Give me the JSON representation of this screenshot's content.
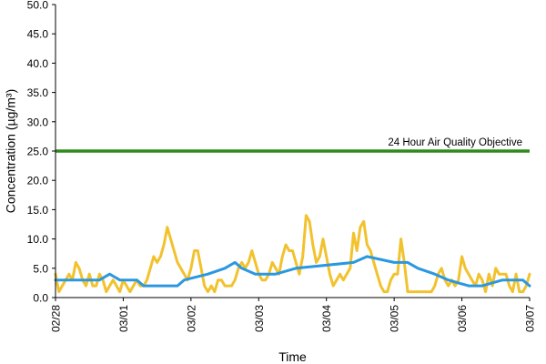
{
  "chart_data": {
    "type": "line",
    "title": "",
    "xlabel": "Time",
    "ylabel": "Concentration (µg/m³)",
    "ylim": [
      0,
      50
    ],
    "xlim": [
      "02/28",
      "03/07"
    ],
    "y_ticks": [
      "0.0",
      "5.0",
      "10.0",
      "15.0",
      "20.0",
      "25.0",
      "30.0",
      "35.0",
      "40.0",
      "45.0",
      "50.0"
    ],
    "x_ticks": [
      "02/28",
      "03/01",
      "03/02",
      "03/03",
      "03/04",
      "03/05",
      "03/06",
      "03/07"
    ],
    "grid": false,
    "legend": "none",
    "reference_line": {
      "value": 25,
      "label": "24 Hour Air Quality Objective",
      "color": "#2e8b1e"
    },
    "series": [
      {
        "color": "#f2c22e",
        "x": [
          0,
          0.05,
          0.1,
          0.15,
          0.2,
          0.25,
          0.3,
          0.35,
          0.4,
          0.45,
          0.5,
          0.55,
          0.6,
          0.65,
          0.7,
          0.75,
          0.8,
          0.85,
          0.9,
          0.95,
          1.0,
          1.05,
          1.1,
          1.15,
          1.2,
          1.25,
          1.3,
          1.35,
          1.4,
          1.45,
          1.5,
          1.55,
          1.6,
          1.65,
          1.7,
          1.75,
          1.8,
          1.85,
          1.9,
          1.95,
          2.0,
          2.05,
          2.1,
          2.15,
          2.2,
          2.25,
          2.3,
          2.35,
          2.4,
          2.45,
          2.5,
          2.55,
          2.6,
          2.65,
          2.7,
          2.75,
          2.8,
          2.85,
          2.9,
          2.95,
          3.0,
          3.05,
          3.1,
          3.15,
          3.2,
          3.25,
          3.3,
          3.35,
          3.4,
          3.45,
          3.5,
          3.55,
          3.6,
          3.65,
          3.7,
          3.75,
          3.8,
          3.85,
          3.9,
          3.95,
          4.0,
          4.05,
          4.1,
          4.15,
          4.2,
          4.25,
          4.3,
          4.35,
          4.4,
          4.45,
          4.5,
          4.55,
          4.6,
          4.65,
          4.7,
          4.75,
          4.8,
          4.85,
          4.9,
          4.95,
          5.0,
          5.05,
          5.1,
          5.15,
          5.2,
          5.25,
          5.3,
          5.35,
          5.4,
          5.45,
          5.5,
          5.55,
          5.6,
          5.65,
          5.7,
          5.75,
          5.8,
          5.85,
          5.9,
          5.95,
          6.0,
          6.05,
          6.1,
          6.15,
          6.2,
          6.25,
          6.3,
          6.35,
          6.4,
          6.45,
          6.5,
          6.55,
          6.6,
          6.65,
          6.7,
          6.75,
          6.8,
          6.85,
          6.9,
          6.95,
          7.0
        ],
        "values": [
          4,
          1,
          2,
          3,
          4,
          3,
          6,
          5,
          3,
          2,
          4,
          2,
          2,
          4,
          3,
          1,
          2,
          3,
          2,
          1,
          3,
          2,
          1,
          2,
          3,
          2,
          2,
          3,
          5,
          7,
          6,
          7,
          9,
          12,
          10,
          8,
          6,
          5,
          4,
          3,
          5,
          8,
          8,
          5,
          2,
          1,
          2,
          1,
          3,
          3,
          2,
          2,
          2,
          3,
          5,
          6,
          5,
          6,
          8,
          6,
          4,
          3,
          3,
          4,
          6,
          5,
          4,
          7,
          9,
          8,
          8,
          6,
          4,
          7,
          14,
          13,
          9,
          6,
          7,
          10,
          7,
          4,
          2,
          3,
          4,
          3,
          4,
          5,
          11,
          8,
          12,
          13,
          9,
          8,
          6,
          4,
          2,
          1,
          1,
          3,
          4,
          4,
          10,
          6,
          1,
          1,
          1,
          1,
          1,
          1,
          1,
          1,
          2,
          4,
          5,
          3,
          2,
          3,
          2,
          3,
          7,
          5,
          4,
          3,
          2,
          4,
          3,
          1,
          4,
          2,
          5,
          4,
          4,
          4,
          2,
          1,
          4,
          1,
          1,
          2,
          4
        ]
      },
      {
        "color": "#2a98e0",
        "x": [
          0,
          0.3,
          0.65,
          0.8,
          0.95,
          1.0,
          1.2,
          1.3,
          1.8,
          1.9,
          2.25,
          2.5,
          2.65,
          2.75,
          2.95,
          3.25,
          3.55,
          4.4,
          4.6,
          5.0,
          5.2,
          5.35,
          5.6,
          5.8,
          6.1,
          6.3,
          6.6,
          6.9,
          7.0
        ],
        "values": [
          3,
          3,
          3,
          4,
          3,
          3,
          3,
          2,
          2,
          3,
          4,
          5,
          6,
          5,
          4,
          4,
          5,
          6,
          7,
          6,
          6,
          5,
          4,
          3,
          2,
          2,
          3,
          3,
          2
        ]
      }
    ]
  }
}
